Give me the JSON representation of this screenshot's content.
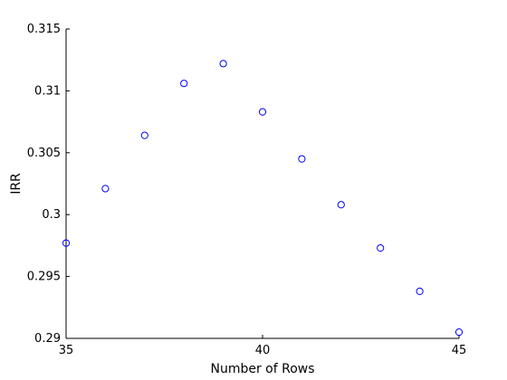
{
  "chart_data": {
    "type": "scatter",
    "title": "",
    "xlabel": "Number of Rows",
    "ylabel": "IRR",
    "xlim": [
      35,
      45
    ],
    "ylim": [
      0.29,
      0.315
    ],
    "x_ticks": [
      35,
      40,
      45
    ],
    "x_tick_labels": [
      "35",
      "40",
      "45"
    ],
    "y_ticks": [
      0.29,
      0.295,
      0.3,
      0.305,
      0.31,
      0.315
    ],
    "y_tick_labels": [
      "0.29",
      "0.295",
      "0.3",
      "0.305",
      "0.31",
      "0.315"
    ],
    "grid": false,
    "legend": "none",
    "marker": "circle",
    "marker_color": "#0000ff",
    "series": [
      {
        "x": [
          35,
          36,
          37,
          38,
          39,
          40,
          41,
          42,
          43,
          44,
          45
        ],
        "y": [
          0.2977,
          0.3021,
          0.3064,
          0.3106,
          0.3122,
          0.3083,
          0.3045,
          0.3008,
          0.2973,
          0.2938,
          0.2905
        ]
      }
    ]
  }
}
